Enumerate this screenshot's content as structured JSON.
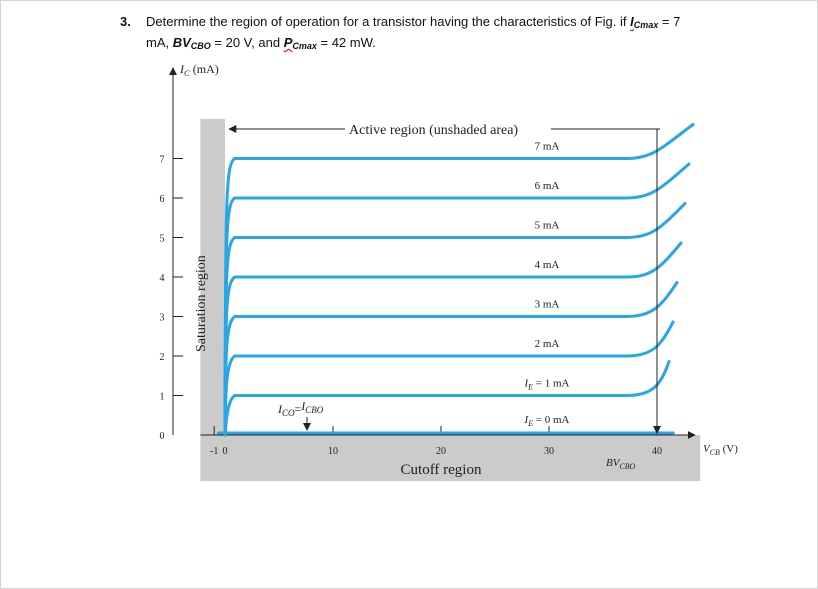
{
  "question": {
    "number": "3.",
    "prefix": "Determine the region of operation for a transistor having the characteristics of Fig. if ",
    "ic_sym": "I",
    "ic_sub": "Cmax",
    "ic_val": " = 7",
    "line2_start": "mA, ",
    "bv_sym": "BV",
    "bv_sub": "CBO",
    "bv_val": " = 20 V, and ",
    "p_sym": "P",
    "p_sub": "Cmax",
    "p_val": " = 42 mW."
  },
  "chart_data": {
    "type": "line",
    "title": "",
    "xlabel": "V_CB (V)",
    "ylabel": "I_C (mA)",
    "xlim": [
      -2,
      44
    ],
    "ylim": [
      0,
      8
    ],
    "x_ticks": [
      -1,
      0,
      10,
      20,
      30,
      40
    ],
    "y_ticks": [
      0,
      1,
      2,
      3,
      4,
      5,
      6,
      7
    ],
    "grid": false,
    "series": [
      {
        "name": "I_E = 0 mA",
        "ic": 0
      },
      {
        "name": "I_E = 1 mA",
        "ic": 1
      },
      {
        "name": "2 mA",
        "ic": 2
      },
      {
        "name": "3 mA",
        "ic": 3
      },
      {
        "name": "4 mA",
        "ic": 4
      },
      {
        "name": "5 mA",
        "ic": 5
      },
      {
        "name": "6 mA",
        "ic": 6
      },
      {
        "name": "7 mA",
        "ic": 7
      }
    ],
    "annotations": {
      "active": "Active region (unshaded area)",
      "saturation": "Saturation region",
      "cutoff": "Cutoff region",
      "ico": "I_CO = I_CBO",
      "bvcbo": "BV_CBO"
    },
    "colors": {
      "curve": "#29a6e6",
      "shade": "#cbcbcb",
      "axis": "#222222"
    }
  }
}
